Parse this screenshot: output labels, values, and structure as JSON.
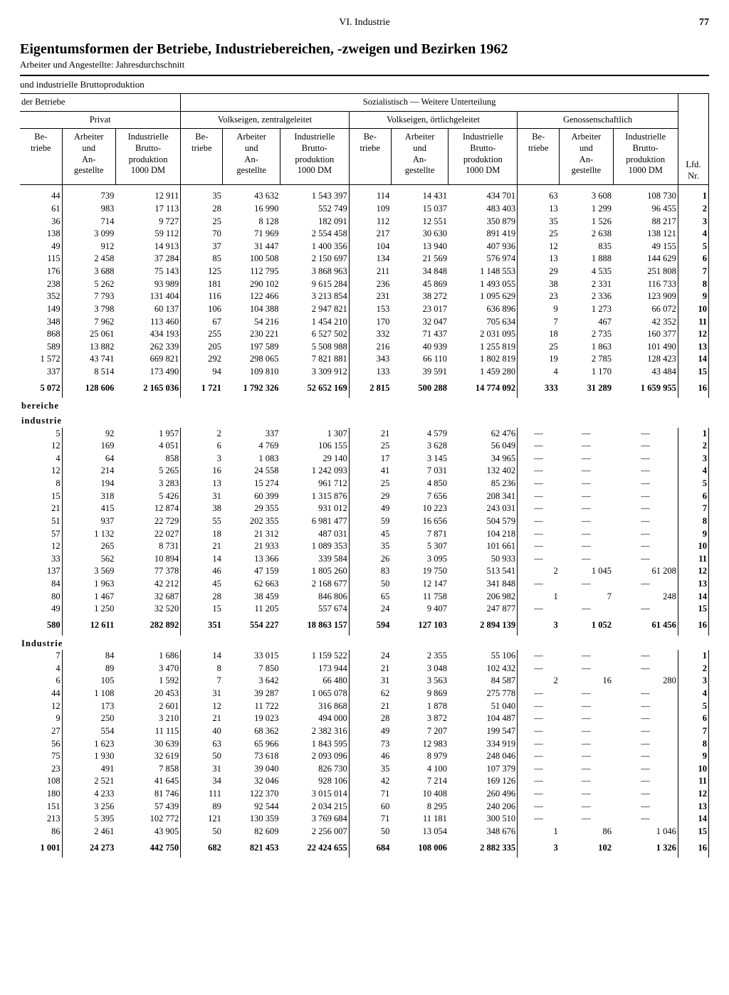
{
  "page": {
    "section": "VI. Industrie",
    "number": "77",
    "title": "Eigentumsformen der Betriebe, Industriebereichen, -zweigen und Bezirken 1962",
    "subtitle": "Arbeiter und Angestellte: Jahresdurchschnitt",
    "subhead": "und industrielle Bruttoproduktion"
  },
  "headers": {
    "derBetriebe": "der Betriebe",
    "socSub": "Sozialistisch — Weitere Unterteilung",
    "privat": "Privat",
    "volksZ": "Volkseigen, zentralgeleitet",
    "volksO": "Volkseigen, örtlichgeleitet",
    "genoss": "Genossenschaftlich",
    "betriebe": "Be-\ntriebe",
    "arbAng": "Arbeiter\nund\nAn-\ngestellte",
    "brutto": "Industrielle\nBrutto-\nproduktion\n1000 DM",
    "lfd": "Lfd.\nNr."
  },
  "sections": [
    {
      "label": "",
      "rows": [
        [
          "44",
          "739",
          "12 911",
          "35",
          "43 632",
          "1 543 397",
          "114",
          "14 431",
          "434 701",
          "63",
          "3 608",
          "108 730",
          "1"
        ],
        [
          "61",
          "983",
          "17 113",
          "28",
          "16 990",
          "552 749",
          "109",
          "15 037",
          "483 403",
          "13",
          "1 299",
          "96 455",
          "2"
        ],
        [
          "36",
          "714",
          "9 727",
          "25",
          "8 128",
          "182 091",
          "112",
          "12 551",
          "350 879",
          "35",
          "1 526",
          "88 217",
          "3"
        ],
        [
          "138",
          "3 099",
          "59 112",
          "70",
          "71 969",
          "2 554 458",
          "217",
          "30 630",
          "891 419",
          "25",
          "2 638",
          "138 121",
          "4"
        ],
        [
          "49",
          "912",
          "14 913",
          "37",
          "31 447",
          "1 400 356",
          "104",
          "13 940",
          "407 936",
          "12",
          "835",
          "49 155",
          "5"
        ],
        [
          "115",
          "2 458",
          "37 284",
          "85",
          "100 508",
          "2 150 697",
          "134",
          "21 569",
          "576 974",
          "13",
          "1 888",
          "144 629",
          "6"
        ],
        [
          "176",
          "3 688",
          "75 143",
          "125",
          "112 795",
          "3 868 963",
          "211",
          "34 848",
          "1 148 553",
          "29",
          "4 535",
          "251 808",
          "7"
        ],
        [
          "238",
          "5 262",
          "93 989",
          "181",
          "290 102",
          "9 615 284",
          "236",
          "45 869",
          "1 493 055",
          "38",
          "2 331",
          "116 733",
          "8"
        ],
        [
          "352",
          "7 793",
          "131 404",
          "116",
          "122 466",
          "3 213 854",
          "231",
          "38 272",
          "1 095 629",
          "23",
          "2 336",
          "123 909",
          "9"
        ],
        [
          "149",
          "3 798",
          "60 137",
          "106",
          "104 388",
          "2 947 821",
          "153",
          "23 017",
          "636 896",
          "9",
          "1 273",
          "66 072",
          "10"
        ],
        [
          "348",
          "7 962",
          "113 460",
          "67",
          "54 216",
          "1 454 210",
          "170",
          "32 047",
          "705 634",
          "7",
          "467",
          "42 352",
          "11"
        ],
        [
          "868",
          "25 061",
          "434 193",
          "255",
          "230 221",
          "6 527 502",
          "332",
          "71 437",
          "2 031 095",
          "18",
          "2 735",
          "160 377",
          "12"
        ],
        [
          "589",
          "13 882",
          "262 339",
          "205",
          "197 589",
          "5 508 988",
          "216",
          "40 939",
          "1 255 819",
          "25",
          "1 863",
          "101 490",
          "13"
        ],
        [
          "1 572",
          "43 741",
          "669 821",
          "292",
          "298 065",
          "7 821 881",
          "343",
          "66 110",
          "1 802 819",
          "19",
          "2 785",
          "128 423",
          "14"
        ],
        [
          "337",
          "8 514",
          "173 490",
          "94",
          "109 810",
          "3 309 912",
          "133",
          "39 591",
          "1 459 280",
          "4",
          "1 170",
          "43 484",
          "15"
        ]
      ],
      "total": [
        "5 072",
        "128 606",
        "2 165 036",
        "1 721",
        "1 792 326",
        "52 652 169",
        "2 815",
        "500 288",
        "14 774 092",
        "333",
        "31 289",
        "1 659 955",
        "16"
      ]
    },
    {
      "label": "bereiche",
      "label2": "industrie",
      "rows": [
        [
          "5",
          "92",
          "1 957",
          "2",
          "337",
          "1 307",
          "21",
          "4 579",
          "62 476",
          "—",
          "—",
          "—",
          "1"
        ],
        [
          "12",
          "169",
          "4 051",
          "6",
          "4 769",
          "106 155",
          "25",
          "3 628",
          "56 049",
          "—",
          "—",
          "—",
          "2"
        ],
        [
          "4",
          "64",
          "858",
          "3",
          "1 083",
          "29 140",
          "17",
          "3 145",
          "34 965",
          "—",
          "—",
          "—",
          "3"
        ],
        [
          "12",
          "214",
          "5 265",
          "16",
          "24 558",
          "1 242 093",
          "41",
          "7 031",
          "132 402",
          "—",
          "—",
          "—",
          "4"
        ],
        [
          "8",
          "194",
          "3 283",
          "13",
          "15 274",
          "961 712",
          "25",
          "4 850",
          "85 236",
          "—",
          "—",
          "—",
          "5"
        ],
        [
          "15",
          "318",
          "5 426",
          "31",
          "60 399",
          "1 315 876",
          "29",
          "7 656",
          "208 341",
          "—",
          "—",
          "—",
          "6"
        ],
        [
          "21",
          "415",
          "12 874",
          "38",
          "29 355",
          "931 012",
          "49",
          "10 223",
          "243 031",
          "—",
          "—",
          "—",
          "7"
        ],
        [
          "51",
          "937",
          "22 729",
          "55",
          "202 355",
          "6 981 477",
          "59",
          "16 656",
          "504 579",
          "—",
          "—",
          "—",
          "8"
        ],
        [
          "57",
          "1 132",
          "22 027",
          "18",
          "21 312",
          "487 031",
          "45",
          "7 871",
          "104 218",
          "—",
          "—",
          "—",
          "9"
        ],
        [
          "12",
          "265",
          "8 731",
          "21",
          "21 933",
          "1 089 353",
          "35",
          "5 307",
          "101 661",
          "—",
          "—",
          "—",
          "10"
        ],
        [
          "33",
          "562",
          "10 894",
          "14",
          "13 366",
          "339 584",
          "26",
          "3 095",
          "50 933",
          "—",
          "—",
          "—",
          "11"
        ],
        [
          "137",
          "3 569",
          "77 378",
          "46",
          "47 159",
          "1 805 260",
          "83",
          "19 750",
          "513 541",
          "2",
          "1 045",
          "61 208",
          "12"
        ],
        [
          "84",
          "1 963",
          "42 212",
          "45",
          "62 663",
          "2 168 677",
          "50",
          "12 147",
          "341 848",
          "—",
          "—",
          "—",
          "13"
        ],
        [
          "80",
          "1 467",
          "32 687",
          "28",
          "38 459",
          "846 806",
          "65",
          "11 758",
          "206 982",
          "1",
          "7",
          "248",
          "14"
        ],
        [
          "49",
          "1 250",
          "32 520",
          "15",
          "11 205",
          "557 674",
          "24",
          "9 407",
          "247 877",
          "—",
          "—",
          "—",
          "15"
        ]
      ],
      "total": [
        "580",
        "12 611",
        "282 892",
        "351",
        "554 227",
        "18 863 157",
        "594",
        "127 103",
        "2 894 139",
        "3",
        "1 052",
        "61 456",
        "16"
      ]
    },
    {
      "label": "Industrie",
      "rows": [
        [
          "7",
          "84",
          "1 686",
          "14",
          "33 015",
          "1 159 522",
          "24",
          "2 355",
          "55 106",
          "—",
          "—",
          "—",
          "1"
        ],
        [
          "4",
          "89",
          "3 470",
          "8",
          "7 850",
          "173 944",
          "21",
          "3 048",
          "102 432",
          "—",
          "—",
          "—",
          "2"
        ],
        [
          "6",
          "105",
          "1 592",
          "7",
          "3 642",
          "66 480",
          "31",
          "3 563",
          "84 587",
          "2",
          "16",
          "280",
          "3"
        ],
        [
          "44",
          "1 108",
          "20 453",
          "31",
          "39 287",
          "1 065 078",
          "62",
          "9 869",
          "275 778",
          "—",
          "—",
          "—",
          "4"
        ],
        [
          "12",
          "173",
          "2 601",
          "12",
          "11 722",
          "316 868",
          "21",
          "1 878",
          "51 040",
          "—",
          "—",
          "—",
          "5"
        ],
        [
          "9",
          "250",
          "3 210",
          "21",
          "19 023",
          "494 000",
          "28",
          "3 872",
          "104 487",
          "—",
          "—",
          "—",
          "6"
        ],
        [
          "27",
          "554",
          "11 115",
          "40",
          "68 362",
          "2 382 316",
          "49",
          "7 207",
          "199 547",
          "—",
          "—",
          "—",
          "7"
        ],
        [
          "56",
          "1 623",
          "30 639",
          "63",
          "65 966",
          "1 843 595",
          "73",
          "12 983",
          "334 919",
          "—",
          "—",
          "—",
          "8"
        ],
        [
          "75",
          "1 930",
          "32 619",
          "50",
          "73 618",
          "2 093 096",
          "46",
          "8 979",
          "248 046",
          "—",
          "—",
          "—",
          "9"
        ],
        [
          "23",
          "491",
          "7 858",
          "31",
          "39 040",
          "826 730",
          "35",
          "4 100",
          "107 379",
          "—",
          "—",
          "—",
          "10"
        ],
        [
          "108",
          "2 521",
          "41 645",
          "34",
          "32 046",
          "928 106",
          "42",
          "7 214",
          "169 126",
          "—",
          "—",
          "—",
          "11"
        ],
        [
          "180",
          "4 233",
          "81 746",
          "111",
          "122 370",
          "3 015 014",
          "71",
          "10 408",
          "260 496",
          "—",
          "—",
          "—",
          "12"
        ],
        [
          "151",
          "3 256",
          "57 439",
          "89",
          "92 544",
          "2 034 215",
          "60",
          "8 295",
          "240 206",
          "—",
          "—",
          "—",
          "13"
        ],
        [
          "213",
          "5 395",
          "102 772",
          "121",
          "130 359",
          "3 769 684",
          "71",
          "11 181",
          "300 510",
          "—",
          "—",
          "—",
          "14"
        ],
        [
          "86",
          "2 461",
          "43 905",
          "50",
          "82 609",
          "2 256 007",
          "50",
          "13 054",
          "348 676",
          "1",
          "86",
          "1 046",
          "15"
        ]
      ],
      "total": [
        "1 001",
        "24 273",
        "442 750",
        "682",
        "821 453",
        "22 424 655",
        "684",
        "108 006",
        "2 882 335",
        "3",
        "102",
        "1 326",
        "16"
      ]
    }
  ]
}
